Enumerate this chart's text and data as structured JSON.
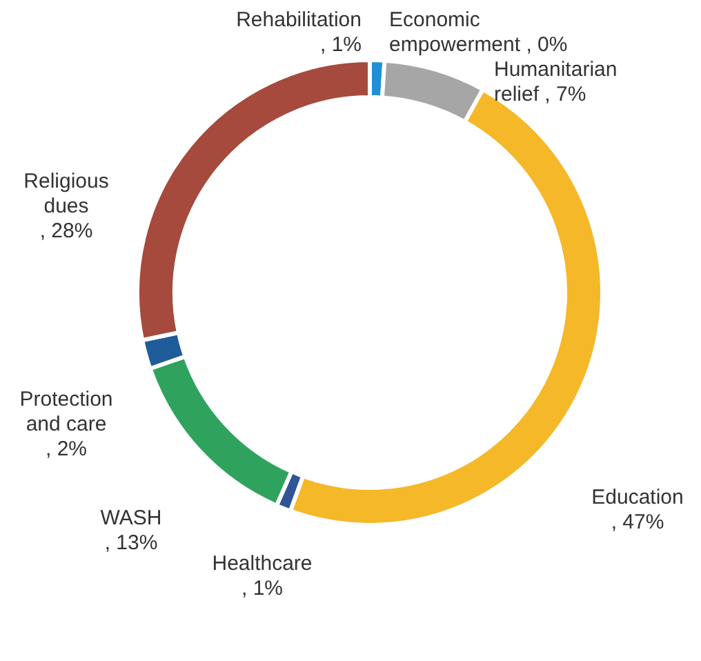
{
  "chart_data": {
    "type": "donut",
    "categories": [
      "Rehabilitation",
      "Economic empowerment",
      "Humanitarian relief",
      "Education",
      "Healthcare",
      "WASH",
      "Protection and care",
      "Religious dues"
    ],
    "values": [
      1,
      0,
      7,
      47,
      1,
      13,
      2,
      28
    ],
    "colors": [
      "#1f8fd6",
      "#5b9bd5",
      "#a6a6a6",
      "#f5b829",
      "#2f5597",
      "#2fa35e",
      "#1f5c99",
      "#a54a3c"
    ],
    "value_labels": [
      ", 1%",
      ", 0%",
      ", 7%",
      ", 47%",
      ", 1%",
      ", 13%",
      ", 2%",
      ", 28%"
    ],
    "legend": false
  }
}
